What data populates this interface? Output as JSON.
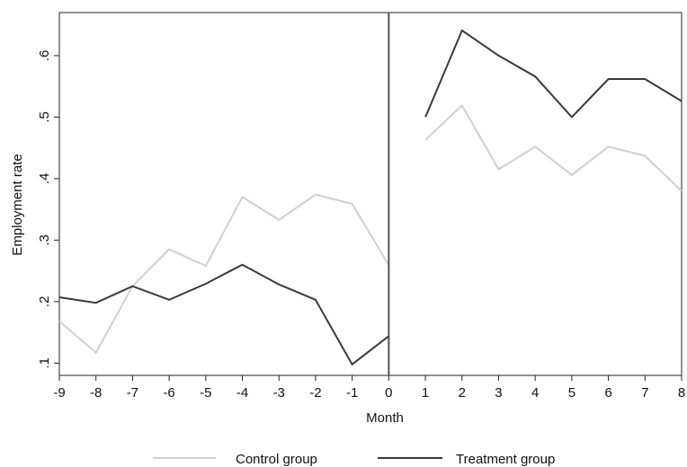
{
  "chart_data": {
    "type": "line",
    "xlabel": "Month",
    "ylabel": "Employment rate",
    "xlim": [
      -9,
      8
    ],
    "ylim": [
      0.08,
      0.67
    ],
    "x_ticks": [
      -9,
      -8,
      -7,
      -6,
      -5,
      -4,
      -3,
      -2,
      -1,
      0,
      1,
      2,
      3,
      4,
      5,
      6,
      7,
      8
    ],
    "y_ticks": [
      0.1,
      0.2,
      0.3,
      0.4,
      0.5,
      0.6
    ],
    "y_tick_labels": [
      ".1",
      ".2",
      ".3",
      ".4",
      ".5",
      ".6"
    ],
    "vertical_line_at": 0,
    "grid": false,
    "legend_position": "bottom",
    "series": [
      {
        "name": "Control group",
        "color": "#d0d0d0",
        "segments": [
          {
            "x": [
              -9,
              -8,
              -7,
              -6,
              -5,
              -4,
              -3,
              -2,
              -1,
              0
            ],
            "y": [
              0.168,
              0.117,
              0.225,
              0.285,
              0.258,
              0.37,
              0.333,
              0.374,
              0.359,
              0.259
            ]
          },
          {
            "x": [
              1,
              2,
              3,
              4,
              5,
              6,
              7,
              8
            ],
            "y": [
              0.463,
              0.519,
              0.415,
              0.452,
              0.406,
              0.452,
              0.437,
              0.38
            ]
          }
        ]
      },
      {
        "name": "Treatment group",
        "color": "#3a3a3a",
        "segments": [
          {
            "x": [
              -9,
              -8,
              -7,
              -6,
              -5,
              -4,
              -3,
              -2,
              -1,
              0
            ],
            "y": [
              0.207,
              0.198,
              0.225,
              0.203,
              0.229,
              0.26,
              0.228,
              0.203,
              0.098,
              0.144
            ]
          },
          {
            "x": [
              1,
              2,
              3,
              4,
              5,
              6,
              7,
              8
            ],
            "y": [
              0.5,
              0.641,
              0.6,
              0.566,
              0.5,
              0.562,
              0.562,
              0.526
            ]
          }
        ]
      }
    ]
  }
}
